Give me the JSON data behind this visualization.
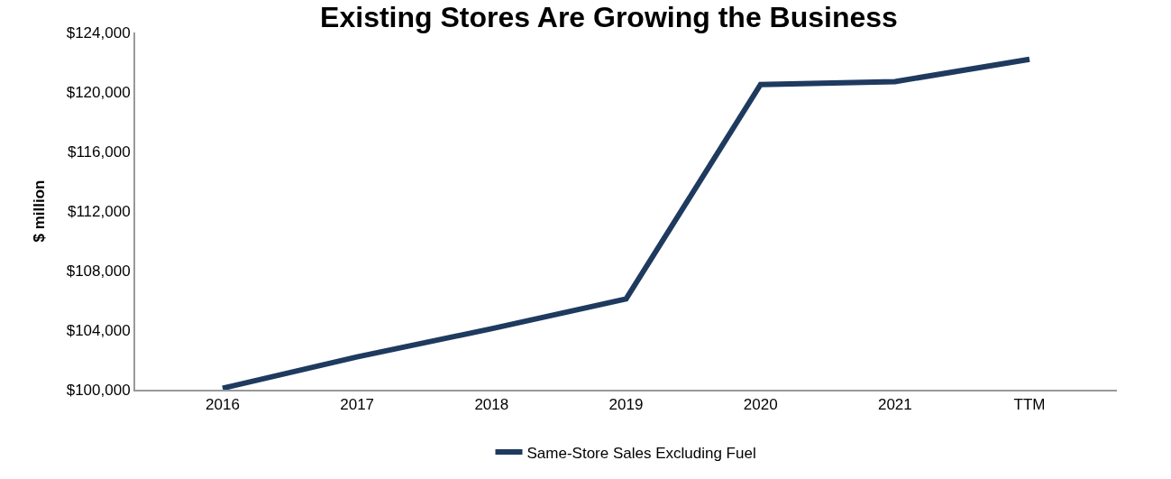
{
  "chart_data": {
    "type": "line",
    "title": "Existing Stores Are Growing the Business",
    "ylabel": "$ million",
    "categories": [
      "2016",
      "2017",
      "2018",
      "2019",
      "2020",
      "2021",
      "TTM"
    ],
    "series": [
      {
        "name": "Same-Store Sales Excluding Fuel",
        "color": "#1f3a5f",
        "values": [
          100100,
          102200,
          104100,
          106100,
          120500,
          120700,
          122200
        ]
      }
    ],
    "ylim": [
      100000,
      124000
    ],
    "yticks": [
      {
        "value": 100000,
        "label": "$100,000"
      },
      {
        "value": 104000,
        "label": "$104,000"
      },
      {
        "value": 108000,
        "label": "$108,000"
      },
      {
        "value": 112000,
        "label": "$112,000"
      },
      {
        "value": 116000,
        "label": "$116,000"
      },
      {
        "value": 120000,
        "label": "$120,000"
      },
      {
        "value": 124000,
        "label": "$124,000"
      }
    ],
    "grid": false,
    "legend": "bottom",
    "marker": "none",
    "line_style": "solid"
  }
}
